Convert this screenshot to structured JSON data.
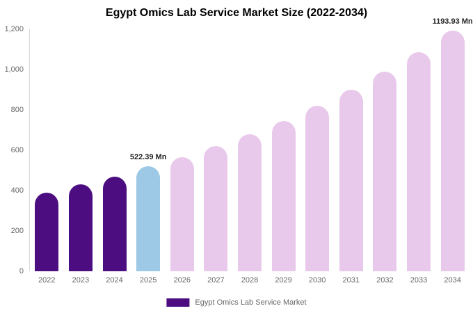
{
  "chart_data": {
    "type": "bar",
    "title": "Egypt Omics Lab Service Market Size (2022-2034)",
    "xlabel": "",
    "ylabel": "",
    "ylim": [
      0,
      1200
    ],
    "grid": false,
    "categories": [
      "2022",
      "2023",
      "2024",
      "2025",
      "2026",
      "2027",
      "2028",
      "2029",
      "2030",
      "2031",
      "2032",
      "2033",
      "2034"
    ],
    "values": [
      390,
      430,
      470,
      522.39,
      565,
      620,
      680,
      745,
      820,
      900,
      990,
      1085,
      1193.93
    ],
    "bar_colors": [
      "#4B0D80",
      "#4B0D80",
      "#4B0D80",
      "#9DC8E6",
      "#E9C9EB",
      "#E9C9EB",
      "#E9C9EB",
      "#E9C9EB",
      "#E9C9EB",
      "#E9C9EB",
      "#E9C9EB",
      "#E9C9EB",
      "#E9C9EB"
    ],
    "annotations": [
      {
        "category": "2025",
        "text": "522.39 Mn"
      },
      {
        "category": "2034",
        "text": "1193.93 Mn"
      }
    ],
    "y_ticks": [
      {
        "value": 1200,
        "label": "1,200"
      },
      {
        "value": 1000,
        "label": "1,000"
      },
      {
        "value": 800,
        "label": "800"
      },
      {
        "value": 600,
        "label": "600"
      },
      {
        "value": 400,
        "label": "400"
      },
      {
        "value": 200,
        "label": "200"
      },
      {
        "value": 0,
        "label": "0"
      }
    ],
    "legend": {
      "position": "bottom",
      "items": [
        {
          "label": "Egypt Omics Lab Service Market",
          "color": "#4B0D80"
        }
      ]
    }
  }
}
